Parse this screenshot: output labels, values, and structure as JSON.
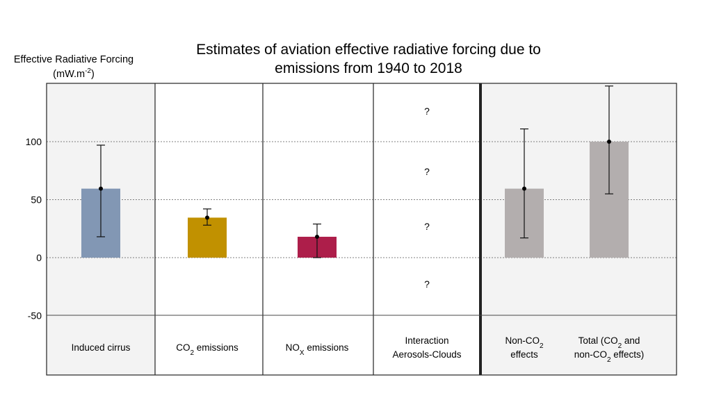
{
  "chart_data": {
    "type": "bar",
    "title_line1": "Estimates of aviation effective radiative forcing due to",
    "title_line2": "emissions from 1940 to 2018",
    "ylabel_line1": "Effective Radiative Forcing",
    "ylabel_unit": "(mW.m",
    "ylabel_unit_sup": "-2",
    "ylabel_unit_close": ")",
    "ylim": [
      -50,
      150
    ],
    "yticks": [
      100,
      50,
      0,
      -50
    ],
    "ytick_labels": [
      "100",
      "50",
      "0",
      "-50"
    ],
    "grid": "dotted horizontal at 0, 50, 100",
    "categories": [
      {
        "parts": [
          {
            "t": "Induced cirrus"
          }
        ]
      },
      {
        "parts": [
          {
            "t": "CO"
          },
          {
            "t": "2",
            "sub": true
          },
          {
            "t": " emissions"
          }
        ]
      },
      {
        "parts": [
          {
            "t": "NO"
          },
          {
            "t": "X",
            "sub": true
          },
          {
            "t": " emissions"
          }
        ]
      },
      {
        "line1": [
          {
            "t": "Interaction"
          }
        ],
        "line2": [
          {
            "t": "Aerosols-Clouds"
          }
        ]
      },
      {
        "line1": [
          {
            "t": "Non-CO"
          },
          {
            "t": "2",
            "sub": true
          }
        ],
        "line2": [
          {
            "t": "effects"
          }
        ]
      },
      {
        "line1": [
          {
            "t": "Total (CO"
          },
          {
            "t": "2",
            "sub": true
          },
          {
            "t": " and"
          }
        ],
        "line2": [
          {
            "t": "non-CO"
          },
          {
            "t": "2",
            "sub": true
          },
          {
            "t": " effects)"
          }
        ]
      }
    ],
    "values": [
      59.5,
      34.5,
      18,
      null,
      59.5,
      100
    ],
    "error_low": [
      18,
      28,
      0,
      null,
      17,
      55
    ],
    "error_high": [
      97,
      42,
      29,
      null,
      111,
      148
    ],
    "bar_colors": [
      "#8297b4",
      "#c19100",
      "#ad1e4a",
      null,
      "#b3aeae",
      "#b3aeae"
    ],
    "unknown_label": "?",
    "unknown_marks": 4
  }
}
